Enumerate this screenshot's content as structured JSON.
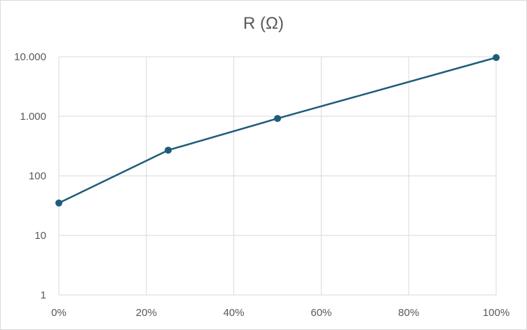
{
  "chart_data": {
    "type": "line",
    "title": "R (Ω)",
    "xlabel": "",
    "ylabel": "",
    "x": [
      0,
      25,
      50,
      100
    ],
    "series": [
      {
        "values": [
          35,
          270,
          920,
          9700
        ],
        "color": "#1f5c7a"
      }
    ],
    "x_ticks": [
      0,
      20,
      40,
      60,
      80,
      100
    ],
    "x_tick_labels": [
      "0%",
      "20%",
      "40%",
      "60%",
      "80%",
      "100%"
    ],
    "xlim": [
      0,
      100
    ],
    "y_scale": "log",
    "y_ticks": [
      1,
      10,
      100,
      1000,
      10000
    ],
    "y_tick_labels": [
      "1",
      "10",
      "100",
      "1.000",
      "10.000"
    ],
    "ylim": [
      1,
      10000
    ],
    "grid": true,
    "legend": "none",
    "gridline_color": "#d9d9d9",
    "label_color": "#595959"
  }
}
